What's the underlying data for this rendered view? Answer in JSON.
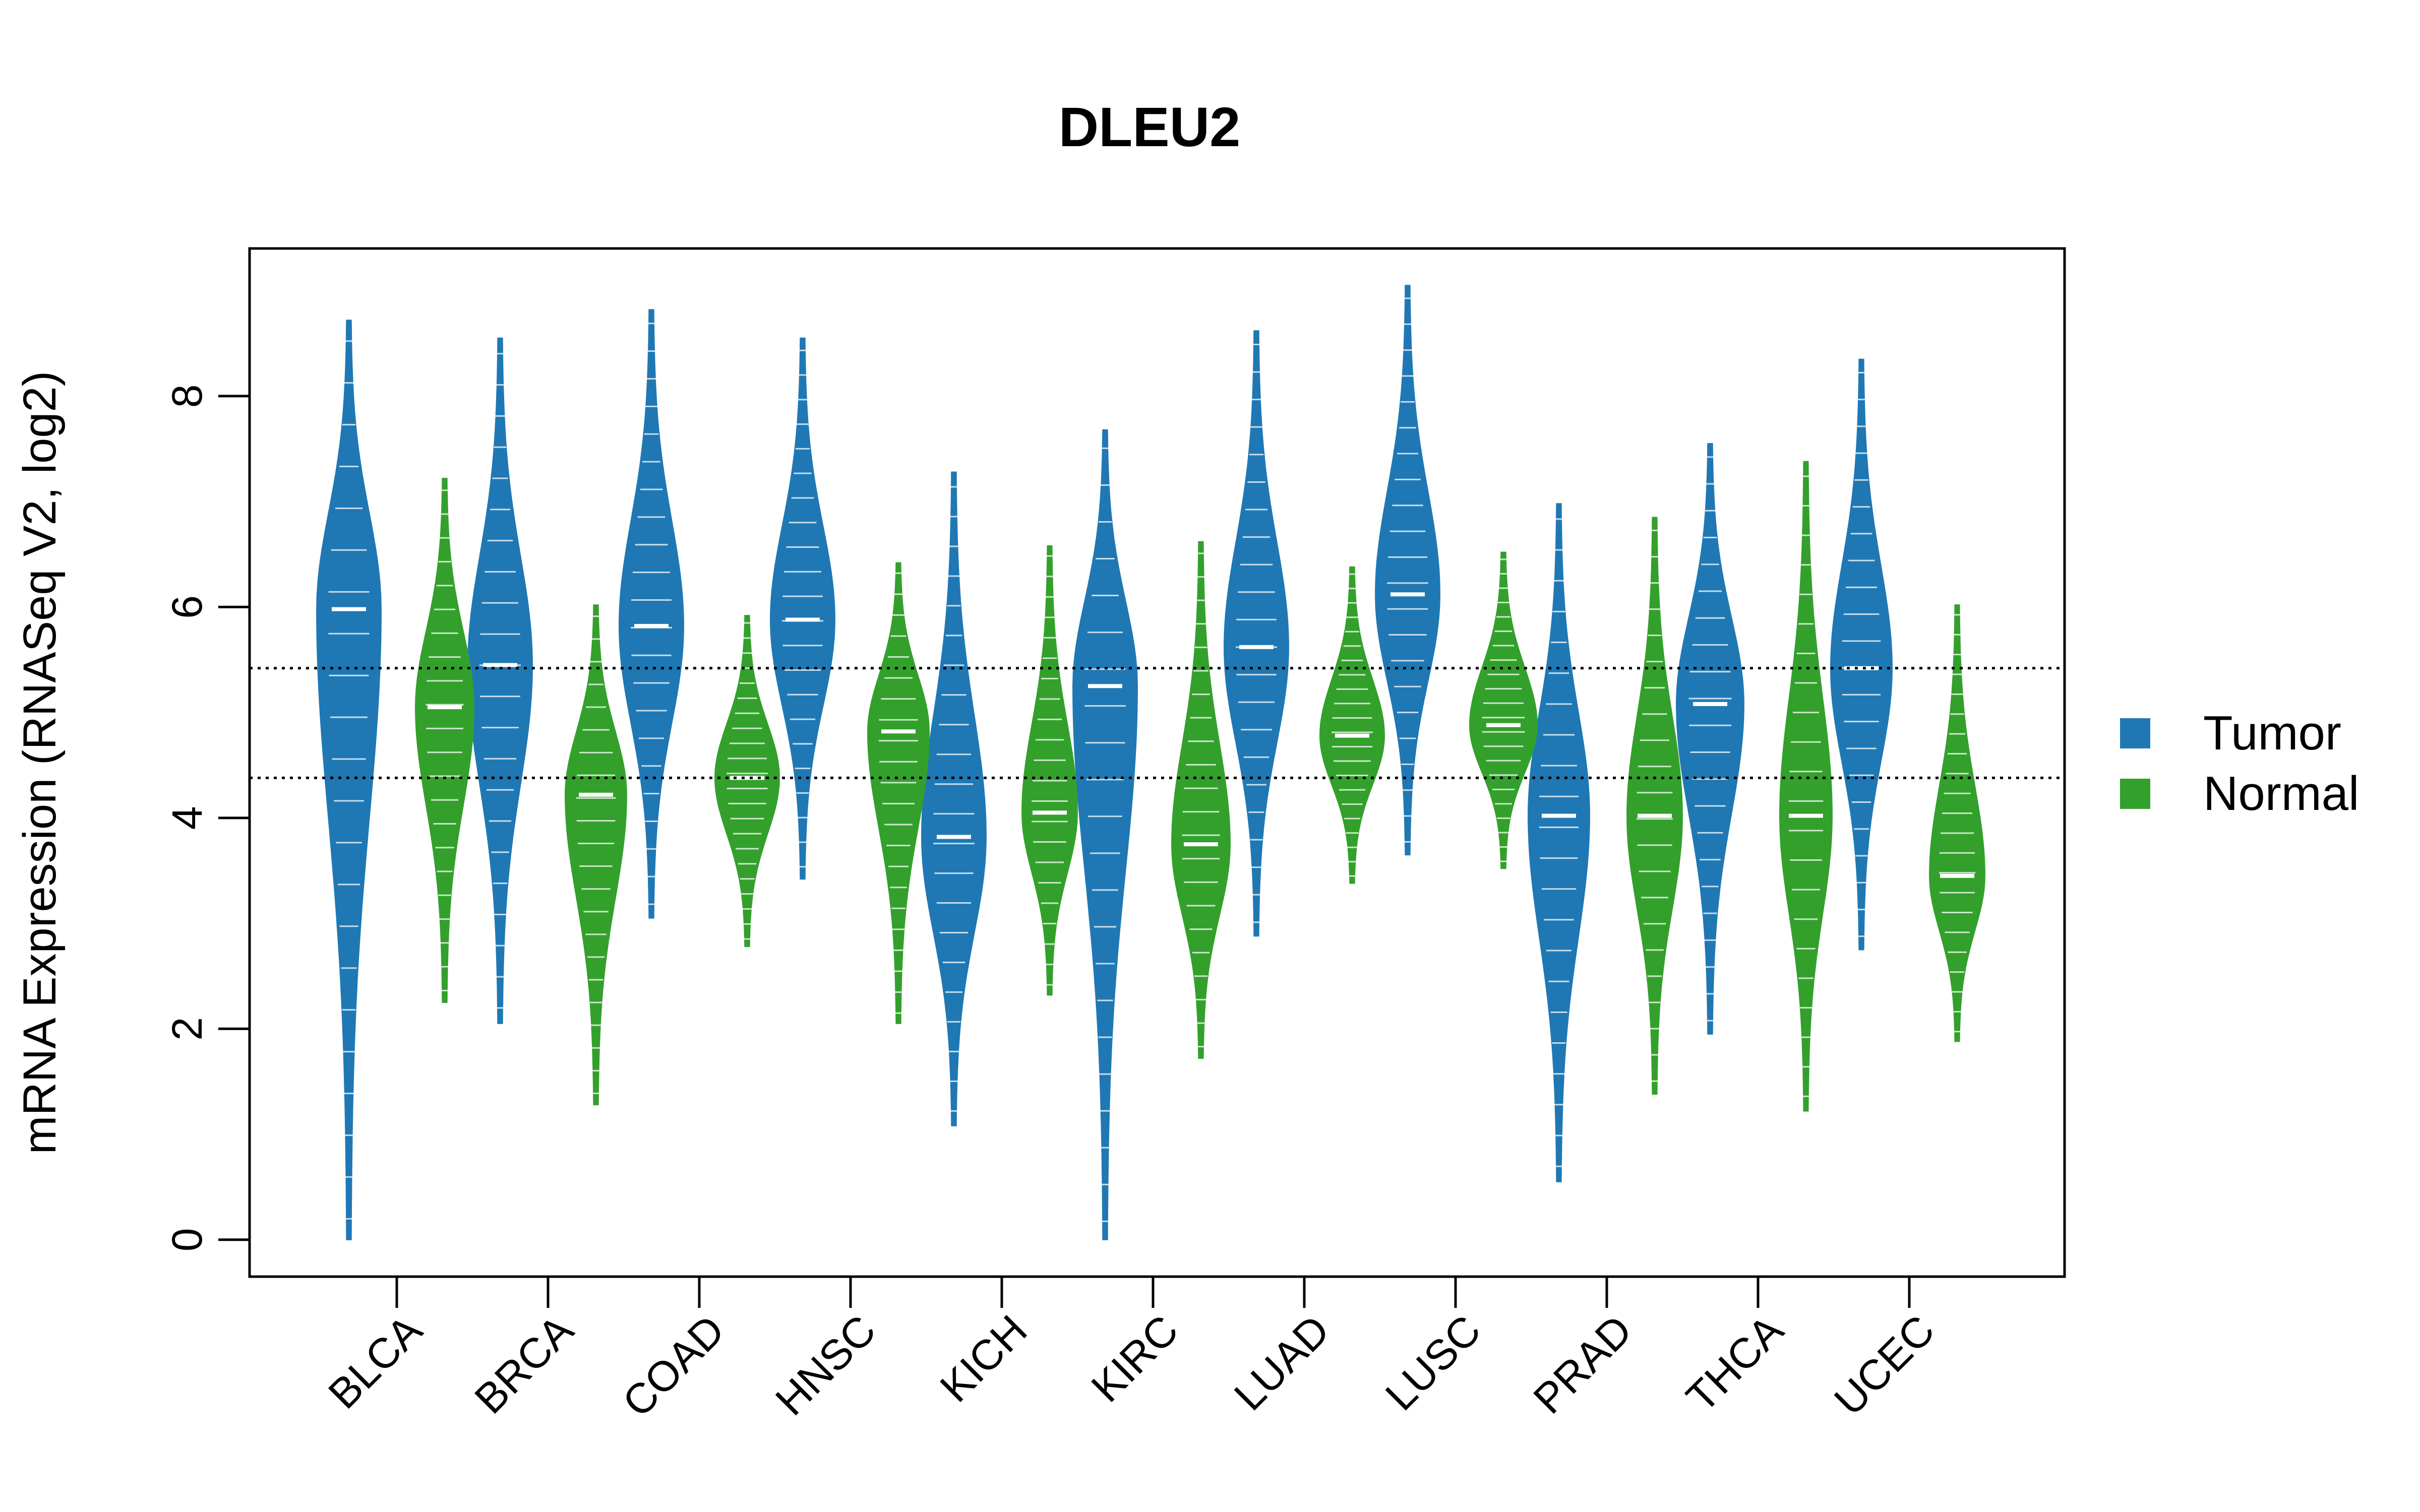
{
  "chart_data": {
    "type": "violin",
    "title": "DLEU2",
    "ylabel": "mRNA Expression (RNASeq V2, log2)",
    "xlabel": "",
    "ylim": [
      -0.35,
      9.4
    ],
    "yticks": [
      0,
      2,
      4,
      6,
      8
    ],
    "categories": [
      "BLCA",
      "BRCA",
      "COAD",
      "HNSC",
      "KICH",
      "KIRC",
      "LUAD",
      "LUSC",
      "PRAD",
      "THCA",
      "UCEC"
    ],
    "reference_lines": [
      5.42,
      4.38
    ],
    "legend": {
      "position": "right"
    },
    "series": [
      {
        "name": "Tumor",
        "color": "#1f78b4",
        "medians": [
          5.98,
          5.45,
          5.82,
          5.88,
          3.82,
          5.25,
          5.62,
          6.12,
          4.02,
          5.08,
          5.42
        ],
        "mins": [
          0.0,
          2.05,
          3.05,
          3.42,
          1.08,
          0.0,
          2.88,
          3.65,
          0.55,
          1.95,
          2.75
        ],
        "maxs": [
          8.72,
          8.55,
          8.82,
          8.55,
          7.28,
          7.68,
          8.62,
          9.05,
          6.98,
          7.55,
          8.35
        ],
        "half_width": [
          0.4,
          0.4,
          0.4,
          0.4,
          0.4,
          0.4,
          0.4,
          0.4,
          0.38,
          0.42,
          0.38
        ]
      },
      {
        "name": "Normal",
        "color": "#33a02c",
        "medians": [
          5.05,
          4.22,
          4.38,
          4.82,
          4.05,
          3.75,
          4.78,
          4.88,
          4.02,
          4.02,
          3.45
        ],
        "mins": [
          2.25,
          1.28,
          2.78,
          2.05,
          2.32,
          1.72,
          3.38,
          3.52,
          1.38,
          1.22,
          1.88
        ],
        "maxs": [
          7.22,
          6.02,
          5.92,
          6.42,
          6.58,
          6.62,
          6.38,
          6.52,
          6.85,
          7.38,
          6.02
        ],
        "half_width": [
          0.36,
          0.38,
          0.4,
          0.38,
          0.34,
          0.36,
          0.4,
          0.42,
          0.34,
          0.32,
          0.34
        ]
      }
    ]
  }
}
